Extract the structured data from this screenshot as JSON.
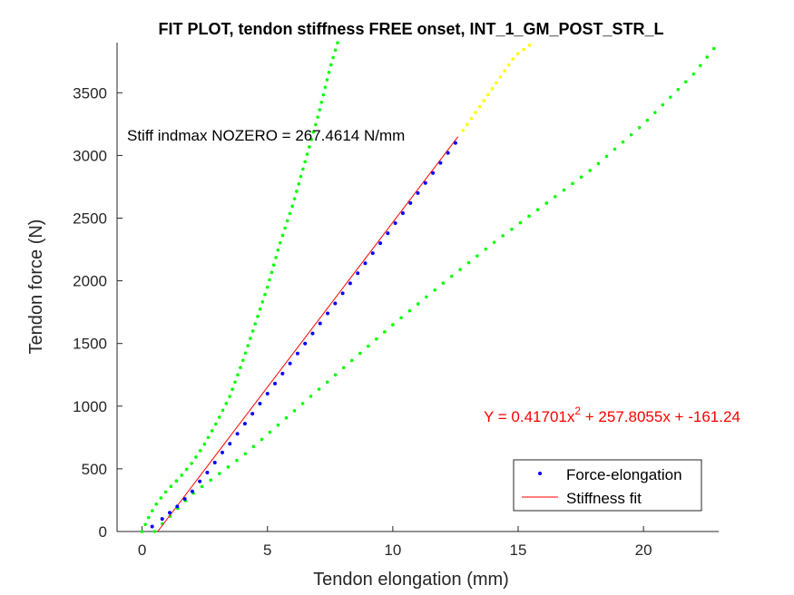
{
  "chart_data": {
    "type": "scatter",
    "title": "FIT PLOT, tendon stiffness FREE onset, INT_1_GM_POST_STR_L",
    "xlabel": "Tendon elongation (mm)",
    "ylabel": "Tendon force (N)",
    "xlim": [
      -1,
      23
    ],
    "ylim": [
      0,
      3900
    ],
    "x_ticks": [
      0,
      5,
      10,
      15,
      20
    ],
    "y_ticks": [
      0,
      500,
      1000,
      1500,
      2000,
      2500,
      3000,
      3500
    ],
    "grid": false,
    "legend_position": "bottom-right",
    "annotation": "Stiff indmax NOZERO = 267.4614 N/mm",
    "equation": {
      "prefix": "Y = 0.41701x",
      "exponent": "2",
      "suffix": " + 257.8055x + -161.24"
    },
    "colors": {
      "force": "#0000ff",
      "fit": "#ff0000",
      "bounds": "#00ff00",
      "extrapolation": "#ffff00",
      "equation": "#ff0000"
    },
    "series": [
      {
        "name": "Force-elongation",
        "x": [
          0.4,
          0.8,
          1.1,
          1.4,
          1.7,
          2.0,
          2.3,
          2.6,
          2.9,
          3.2,
          3.5,
          3.8,
          4.1,
          4.4,
          4.7,
          5.0,
          5.3,
          5.6,
          5.9,
          6.2,
          6.5,
          6.8,
          7.1,
          7.4,
          7.7,
          8.0,
          8.3,
          8.6,
          8.9,
          9.2,
          9.5,
          9.8,
          10.1,
          10.4,
          10.7,
          11.0,
          11.3,
          11.6,
          11.9,
          12.2,
          12.5
        ],
        "y": [
          40,
          100,
          150,
          200,
          260,
          320,
          400,
          470,
          550,
          630,
          700,
          780,
          860,
          940,
          1020,
          1100,
          1180,
          1260,
          1340,
          1420,
          1500,
          1580,
          1660,
          1740,
          1820,
          1900,
          1980,
          2060,
          2140,
          2220,
          2300,
          2380,
          2460,
          2540,
          2620,
          2700,
          2780,
          2860,
          2940,
          3020,
          3100
        ]
      },
      {
        "name": "Stiffness fit",
        "x": [
          0.62,
          12.6
        ],
        "y": [
          0,
          3150
        ]
      },
      {
        "x": [
          0,
          0.3,
          0.6,
          1,
          1.5,
          2,
          2.5,
          3,
          3.5,
          4,
          4.5,
          5,
          5.5,
          6,
          6.5,
          7,
          7.5,
          7.8
        ],
        "y": [
          0,
          130,
          230,
          330,
          430,
          550,
          700,
          880,
          1080,
          1350,
          1650,
          1950,
          2300,
          2600,
          2950,
          3300,
          3700,
          3900
        ]
      },
      {
        "x": [
          0.5,
          2,
          4,
          6,
          8,
          10,
          12,
          14,
          16,
          18,
          20,
          22,
          23
        ],
        "y": [
          0,
          300,
          600,
          950,
          1300,
          1650,
          1980,
          2300,
          2600,
          2900,
          3250,
          3650,
          3900
        ]
      },
      {
        "x": [
          12.8,
          13.5,
          14.2,
          14.9,
          15.6
        ],
        "y": [
          3200,
          3400,
          3600,
          3800,
          3900
        ]
      }
    ]
  }
}
